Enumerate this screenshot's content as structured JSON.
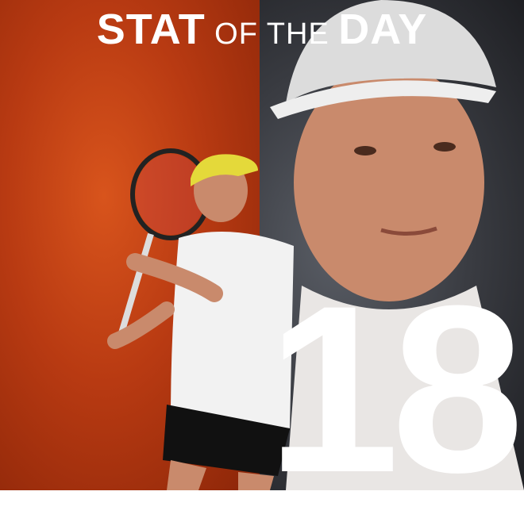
{
  "title": {
    "part1": "STAT",
    "part2": "OF THE",
    "part3": "DAY"
  },
  "stat": {
    "value": "18"
  },
  "colors": {
    "left_bg": "#b83a12",
    "right_bg": "#3a3c42",
    "text": "#ffffff"
  }
}
